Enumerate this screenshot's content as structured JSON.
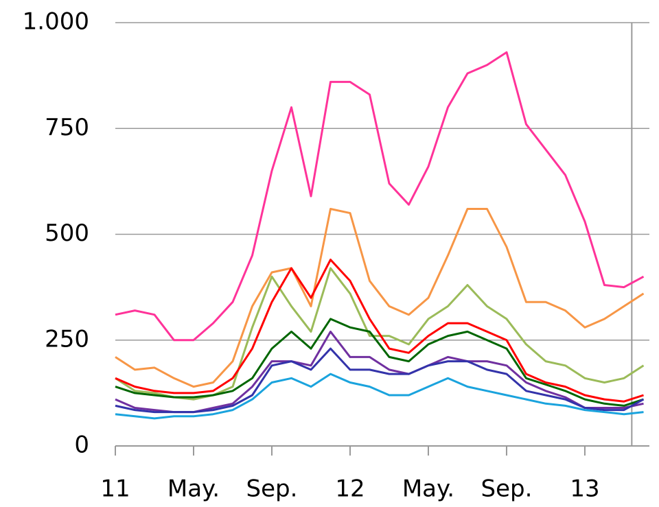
{
  "chart_data": {
    "type": "line",
    "x": [
      0,
      1,
      2,
      3,
      4,
      5,
      6,
      7,
      8,
      9,
      10,
      11,
      12,
      13,
      14,
      15,
      16,
      17,
      18,
      19,
      20,
      21,
      22,
      23,
      24,
      25,
      26,
      27
    ],
    "xlim": [
      0,
      27.3
    ],
    "xticks": [
      {
        "value": 0,
        "label": "11"
      },
      {
        "value": 4,
        "label": "May."
      },
      {
        "value": 8,
        "label": "Sep."
      },
      {
        "value": 12,
        "label": "12"
      },
      {
        "value": 16,
        "label": "May."
      },
      {
        "value": 20,
        "label": "Sep."
      },
      {
        "value": 24,
        "label": "13"
      }
    ],
    "ylim": [
      0,
      1000
    ],
    "yticks": [
      0,
      250,
      500,
      750,
      {
        "value": 1000,
        "label": "1.000"
      }
    ],
    "grid": true,
    "vline": 26.4,
    "series": [
      {
        "color": "#ff3399",
        "values": [
          310,
          320,
          310,
          250,
          250,
          290,
          340,
          450,
          650,
          800,
          590,
          860,
          860,
          830,
          620,
          570,
          660,
          800,
          880,
          900,
          930,
          760,
          700,
          640,
          530,
          380,
          375,
          400
        ]
      },
      {
        "color": "#f79646",
        "values": [
          210,
          180,
          185,
          160,
          140,
          150,
          200,
          330,
          410,
          420,
          330,
          560,
          550,
          390,
          330,
          310,
          350,
          450,
          560,
          560,
          470,
          340,
          340,
          320,
          280,
          300,
          330,
          360
        ]
      },
      {
        "color": "#9bbb59",
        "values": [
          160,
          130,
          125,
          115,
          110,
          120,
          140,
          280,
          400,
          330,
          270,
          420,
          360,
          260,
          260,
          240,
          300,
          330,
          380,
          330,
          300,
          240,
          200,
          190,
          160,
          150,
          160,
          190
        ]
      },
      {
        "color": "#ff0000",
        "values": [
          160,
          140,
          130,
          125,
          125,
          130,
          160,
          230,
          340,
          420,
          350,
          440,
          390,
          300,
          230,
          220,
          260,
          290,
          290,
          270,
          250,
          170,
          150,
          140,
          120,
          110,
          105,
          120
        ]
      },
      {
        "color": "#006600",
        "values": [
          140,
          125,
          120,
          115,
          115,
          120,
          130,
          160,
          230,
          270,
          230,
          300,
          280,
          270,
          210,
          200,
          240,
          260,
          270,
          250,
          230,
          160,
          145,
          130,
          110,
          100,
          95,
          110
        ]
      },
      {
        "color": "#7030a0",
        "values": [
          110,
          90,
          85,
          80,
          80,
          90,
          100,
          140,
          200,
          200,
          190,
          270,
          210,
          210,
          180,
          170,
          190,
          210,
          200,
          200,
          190,
          150,
          130,
          115,
          90,
          90,
          90,
          100
        ]
      },
      {
        "color": "#3333aa",
        "values": [
          95,
          85,
          80,
          80,
          80,
          85,
          95,
          120,
          190,
          200,
          180,
          230,
          180,
          180,
          170,
          170,
          190,
          200,
          200,
          180,
          170,
          130,
          120,
          110,
          90,
          85,
          85,
          110
        ]
      },
      {
        "color": "#1aa3dd",
        "values": [
          75,
          70,
          65,
          70,
          70,
          75,
          85,
          110,
          150,
          160,
          140,
          170,
          150,
          140,
          120,
          120,
          140,
          160,
          140,
          130,
          120,
          110,
          100,
          95,
          85,
          80,
          75,
          80
        ]
      }
    ]
  }
}
